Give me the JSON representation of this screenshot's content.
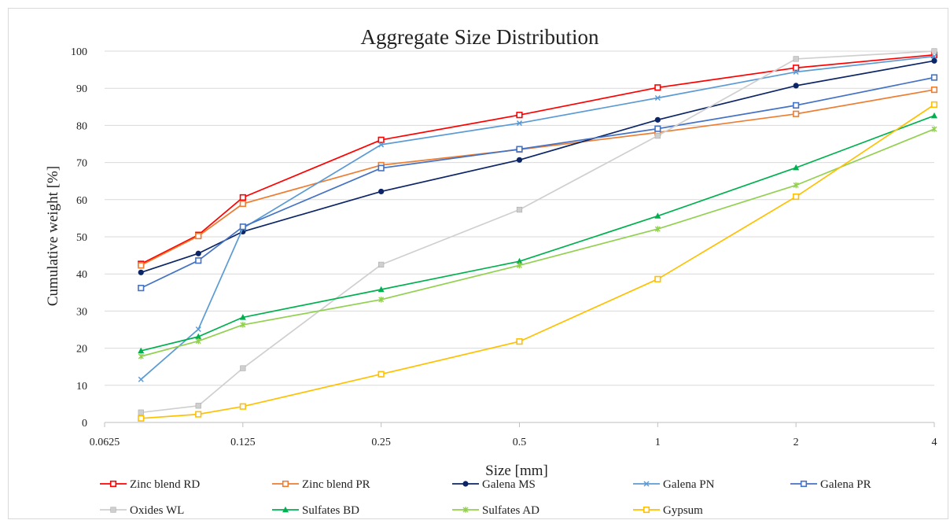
{
  "chart_data": {
    "type": "line",
    "title": "Aggregate Size Distribution",
    "xlabel": "Size [mm]",
    "ylabel": "Cumulative weight [%]",
    "x_scale": "log2",
    "xlim": [
      0.0625,
      4
    ],
    "ylim": [
      0,
      100
    ],
    "x_ticks": [
      "0.0625",
      "0.125",
      "0.25",
      "0.5",
      "1",
      "2",
      "4"
    ],
    "y_ticks": [
      "0",
      "10",
      "20",
      "30",
      "40",
      "50",
      "60",
      "70",
      "80",
      "90",
      "100"
    ],
    "grid": "horizontal",
    "legend_position": "bottom",
    "x": [
      0.075,
      0.1,
      0.125,
      0.25,
      0.5,
      1,
      2,
      4
    ],
    "series": [
      {
        "name": "Zinc blend RD",
        "color": "#ff0000",
        "marker": "square-open",
        "values": [
          42.7,
          50.5,
          60.6,
          76.1,
          82.8,
          90.2,
          95.5,
          99.0
        ]
      },
      {
        "name": "Zinc blend PR",
        "color": "#ed7d31",
        "marker": "square-open",
        "values": [
          42.3,
          50.2,
          58.9,
          69.3,
          73.5,
          78.1,
          83.1,
          89.6
        ]
      },
      {
        "name": "Galena MS",
        "color": "#0c2566",
        "marker": "circle-filled",
        "values": [
          40.4,
          45.5,
          51.4,
          62.2,
          70.7,
          81.5,
          90.7,
          97.4
        ]
      },
      {
        "name": "Galena PN",
        "color": "#5b9bd5",
        "marker": "x",
        "values": [
          11.6,
          25.1,
          52.3,
          74.8,
          80.6,
          87.4,
          94.4,
          98.6
        ]
      },
      {
        "name": "Galena PR",
        "color": "#4472c4",
        "marker": "square-open",
        "values": [
          36.2,
          43.6,
          52.7,
          68.5,
          73.6,
          79.1,
          85.4,
          92.9
        ]
      },
      {
        "name": "Oxides WL",
        "color": "#cfcfcf",
        "marker": "square-filled",
        "values": [
          2.7,
          4.5,
          14.6,
          42.5,
          57.3,
          77.2,
          97.9,
          100.0
        ]
      },
      {
        "name": "Sulfates BD",
        "color": "#00b050",
        "marker": "triangle-filled",
        "values": [
          19.3,
          23.1,
          28.3,
          35.8,
          43.4,
          55.6,
          68.6,
          82.6
        ]
      },
      {
        "name": "Sulfates AD",
        "color": "#92d050",
        "marker": "star",
        "values": [
          17.8,
          21.9,
          26.3,
          33.1,
          42.3,
          52.1,
          63.9,
          79.0
        ]
      },
      {
        "name": "Gypsum",
        "color": "#ffc000",
        "marker": "square-open",
        "values": [
          1.1,
          2.2,
          4.3,
          13.0,
          21.8,
          38.6,
          60.8,
          85.6
        ]
      }
    ]
  }
}
